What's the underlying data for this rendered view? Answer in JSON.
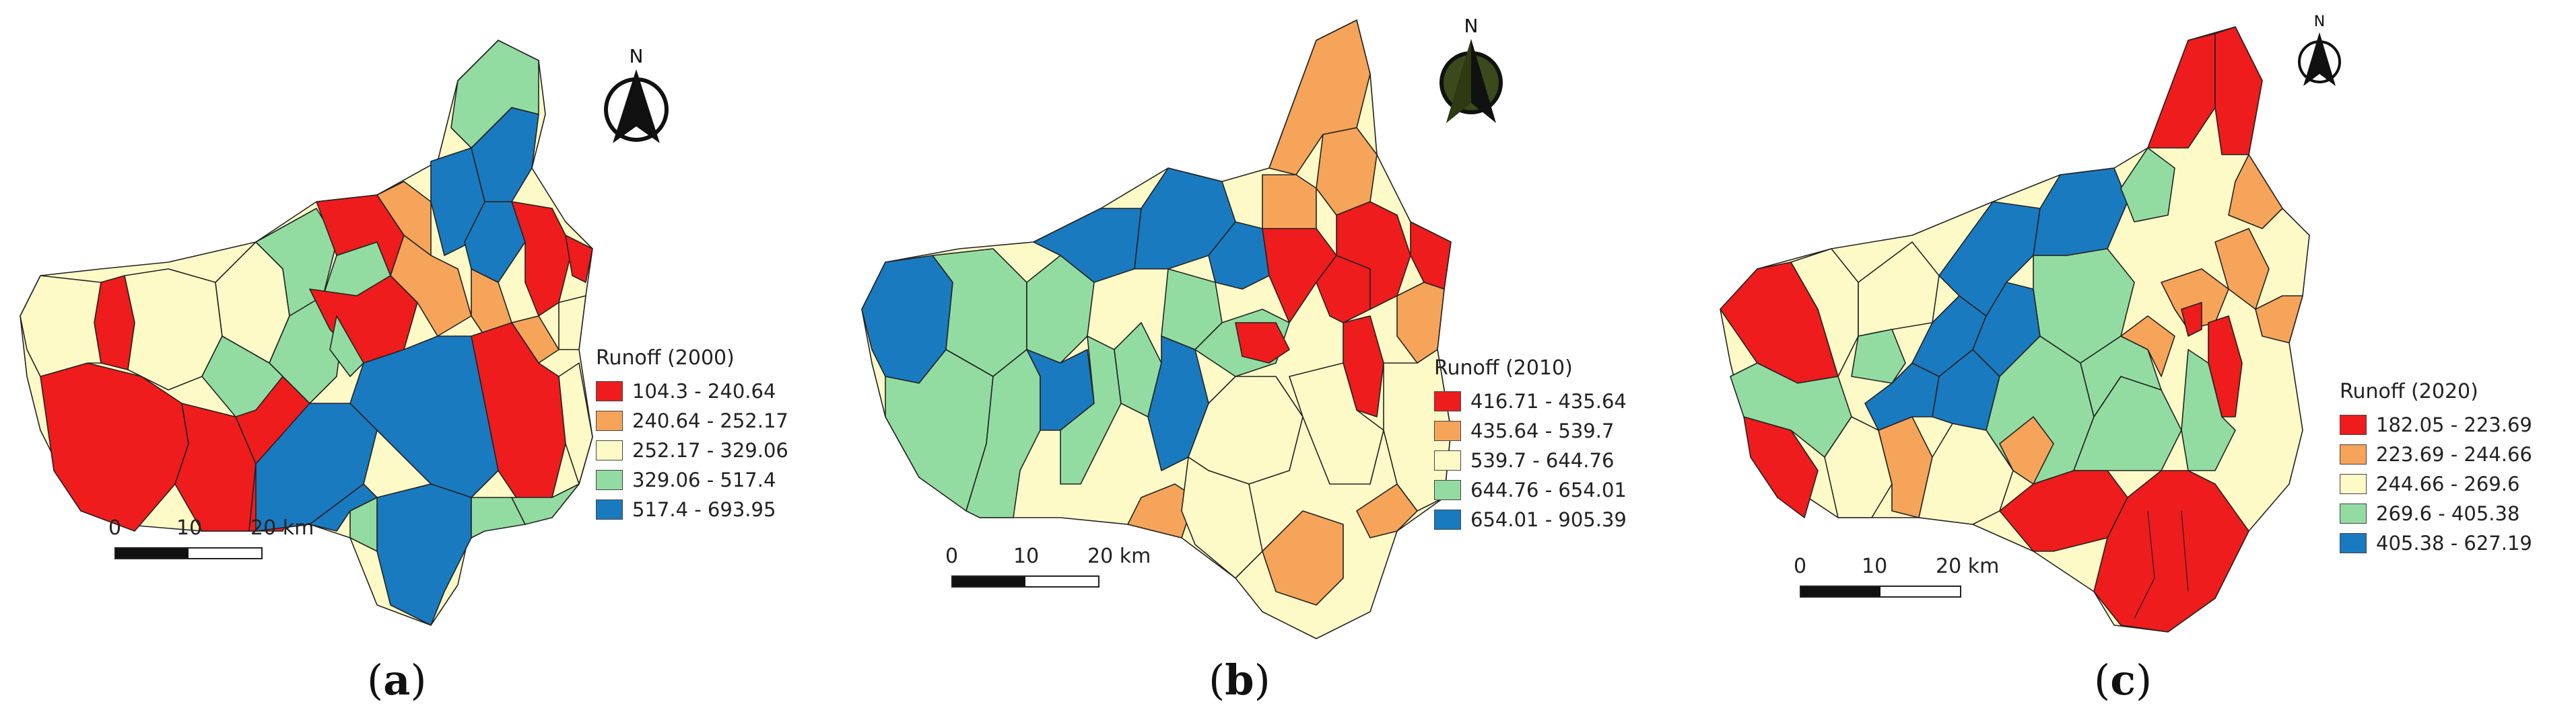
{
  "panels": [
    {
      "label_letter": "a",
      "legend_title": "Runoff (2000)",
      "legend": [
        {
          "range": "104.3 - 240.64",
          "color": "#ee1c1c"
        },
        {
          "range": "240.64 - 252.17",
          "color": "#f5a45a"
        },
        {
          "range": "252.17 - 329.06",
          "color": "#fefac8"
        },
        {
          "range": "329.06 - 517.4",
          "color": "#93dca1"
        },
        {
          "range": "517.4 - 693.95",
          "color": "#1a7abf"
        }
      ],
      "scale": {
        "t0": "0",
        "t1": "10",
        "t2": "20 km"
      },
      "north": "N"
    },
    {
      "label_letter": "b",
      "legend_title": "Runoff (2010)",
      "legend": [
        {
          "range": "416.71 - 435.64",
          "color": "#ee1c1c"
        },
        {
          "range": "435.64 - 539.7",
          "color": "#f5a45a"
        },
        {
          "range": "539.7 - 644.76",
          "color": "#fefac8"
        },
        {
          "range": "644.76 - 654.01",
          "color": "#93dca1"
        },
        {
          "range": "654.01 - 905.39",
          "color": "#1a7abf"
        }
      ],
      "scale": {
        "t0": "0",
        "t1": "10",
        "t2": "20 km"
      },
      "north": "N"
    },
    {
      "label_letter": "c",
      "legend_title": "Runoff (2020)",
      "legend": [
        {
          "range": "182.05 - 223.69",
          "color": "#ee1c1c"
        },
        {
          "range": "223.69 - 244.66",
          "color": "#f5a45a"
        },
        {
          "range": "244.66 - 269.6",
          "color": "#fefac8"
        },
        {
          "range": "269.6 - 405.38",
          "color": "#93dca1"
        },
        {
          "range": "405.38 - 627.19",
          "color": "#1a7abf"
        }
      ],
      "scale": {
        "t0": "0",
        "t1": "10",
        "t2": "20 km"
      },
      "north": "N"
    }
  ]
}
